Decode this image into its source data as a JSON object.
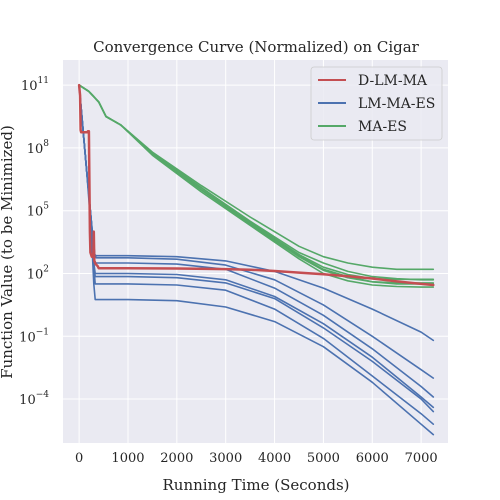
{
  "chart_data": {
    "type": "line",
    "title": "Convergence Curve (Normalized) on Cigar",
    "xlabel": "Running Time (Seconds)",
    "ylabel": "Function Value (to be Minimized)",
    "xlim": [
      -330,
      7550
    ],
    "ylim_log10": [
      -6.1,
      12.2
    ],
    "yscale": "log",
    "grid": true,
    "legend_position": "top-right",
    "xticks": [
      0,
      1000,
      2000,
      3000,
      4000,
      5000,
      6000,
      7000
    ],
    "yticks": [
      {
        "exp": 11,
        "label": "11"
      },
      {
        "exp": 8,
        "label": "8"
      },
      {
        "exp": 5,
        "label": "5"
      },
      {
        "exp": 2,
        "label": "2"
      },
      {
        "exp": -1,
        "label": "−1"
      },
      {
        "exp": -4,
        "label": "−4"
      }
    ],
    "ytick_base": "10",
    "series": [
      {
        "name": "D-LM-MA",
        "color": "#c44e52",
        "runs": [
          {
            "points": [
              [
                0,
                11.0
              ],
              [
                20,
                10.5
              ],
              [
                30,
                8.85
              ],
              [
                40,
                8.75
              ],
              [
                180,
                8.75
              ],
              [
                180,
                8.8
              ],
              [
                200,
                8.8
              ],
              [
                220,
                4.0
              ],
              [
                230,
                3.0
              ],
              [
                260,
                2.8
              ],
              [
                290,
                2.8
              ],
              [
                300,
                4.0
              ],
              [
                310,
                2.6
              ],
              [
                340,
                2.45
              ],
              [
                380,
                2.35
              ],
              [
                400,
                2.25
              ],
              [
                1000,
                2.25
              ],
              [
                2000,
                2.24
              ],
              [
                3000,
                2.21
              ],
              [
                3500,
                2.18
              ],
              [
                4000,
                2.12
              ],
              [
                4500,
                2.04
              ],
              [
                5000,
                1.96
              ],
              [
                5500,
                1.87
              ],
              [
                6000,
                1.76
              ],
              [
                6500,
                1.62
              ],
              [
                7000,
                1.5
              ],
              [
                7250,
                1.45
              ]
            ]
          }
        ]
      },
      {
        "name": "LM-MA-ES",
        "color": "#4c72b0",
        "runs": [
          {
            "points": [
              [
                0,
                11.0
              ],
              [
                150,
                7.0
              ],
              [
                250,
                4.5
              ],
              [
                320,
                2.9
              ],
              [
                350,
                2.85
              ],
              [
                1000,
                2.85
              ],
              [
                2000,
                2.8
              ],
              [
                3000,
                2.6
              ],
              [
                4000,
                2.1
              ],
              [
                5000,
                1.3
              ],
              [
                6000,
                0.3
              ],
              [
                7000,
                -0.8
              ],
              [
                7250,
                -1.2
              ]
            ]
          },
          {
            "points": [
              [
                0,
                11.0
              ],
              [
                150,
                7.0
              ],
              [
                250,
                4.5
              ],
              [
                320,
                2.9
              ],
              [
                350,
                2.75
              ],
              [
                1000,
                2.75
              ],
              [
                2000,
                2.68
              ],
              [
                3000,
                2.4
              ],
              [
                4000,
                1.7
              ],
              [
                5000,
                0.5
              ],
              [
                6000,
                -1.0
              ],
              [
                7000,
                -2.6
              ],
              [
                7250,
                -3.0
              ]
            ]
          },
          {
            "points": [
              [
                0,
                11.0
              ],
              [
                150,
                7.0
              ],
              [
                250,
                4.5
              ],
              [
                300,
                2.7
              ],
              [
                340,
                2.5
              ],
              [
                1000,
                2.5
              ],
              [
                2000,
                2.45
              ],
              [
                3000,
                2.2
              ],
              [
                4000,
                1.3
              ],
              [
                5000,
                0.0
              ],
              [
                6000,
                -1.6
              ],
              [
                7000,
                -3.4
              ],
              [
                7250,
                -3.9
              ]
            ]
          },
          {
            "points": [
              [
                0,
                11.0
              ],
              [
                150,
                7.0
              ],
              [
                250,
                4.5
              ],
              [
                300,
                2.5
              ],
              [
                330,
                2.0
              ],
              [
                1000,
                2.0
              ],
              [
                2000,
                1.95
              ],
              [
                3000,
                1.7
              ],
              [
                4000,
                0.9
              ],
              [
                5000,
                -0.4
              ],
              [
                6000,
                -2.0
              ],
              [
                7000,
                -3.9
              ],
              [
                7250,
                -4.4
              ]
            ]
          },
          {
            "points": [
              [
                0,
                11.0
              ],
              [
                150,
                7.0
              ],
              [
                250,
                4.5
              ],
              [
                300,
                2.4
              ],
              [
                330,
                1.85
              ],
              [
                1000,
                1.85
              ],
              [
                2000,
                1.8
              ],
              [
                3000,
                1.55
              ],
              [
                4000,
                0.8
              ],
              [
                5000,
                -0.6
              ],
              [
                6000,
                -2.2
              ],
              [
                7000,
                -4.0
              ],
              [
                7250,
                -4.6
              ]
            ]
          },
          {
            "points": [
              [
                0,
                11.0
              ],
              [
                150,
                7.0
              ],
              [
                250,
                4.5
              ],
              [
                300,
                2.3
              ],
              [
                330,
                1.5
              ],
              [
                1000,
                1.5
              ],
              [
                2000,
                1.45
              ],
              [
                3000,
                1.2
              ],
              [
                4000,
                0.3
              ],
              [
                5000,
                -1.1
              ],
              [
                6000,
                -2.9
              ],
              [
                7000,
                -4.7
              ],
              [
                7250,
                -5.2
              ]
            ]
          },
          {
            "points": [
              [
                0,
                11.0
              ],
              [
                150,
                7.0
              ],
              [
                250,
                4.0
              ],
              [
                300,
                1.5
              ],
              [
                330,
                0.75
              ],
              [
                1000,
                0.75
              ],
              [
                2000,
                0.7
              ],
              [
                3000,
                0.4
              ],
              [
                4000,
                -0.3
              ],
              [
                5000,
                -1.5
              ],
              [
                6000,
                -3.2
              ],
              [
                7000,
                -5.2
              ],
              [
                7250,
                -5.7
              ]
            ]
          }
        ]
      },
      {
        "name": "MA-ES",
        "color": "#55a868",
        "runs": [
          {
            "points": [
              [
                0,
                11.0
              ],
              [
                200,
                10.7
              ],
              [
                400,
                10.2
              ],
              [
                550,
                9.5
              ],
              [
                700,
                9.3
              ],
              [
                850,
                9.1
              ],
              [
                1500,
                7.8
              ],
              [
                2500,
                6.2
              ],
              [
                3500,
                4.7
              ],
              [
                4500,
                3.3
              ],
              [
                5000,
                2.8
              ],
              [
                5500,
                2.5
              ],
              [
                6000,
                2.3
              ],
              [
                6500,
                2.2
              ],
              [
                7000,
                2.2
              ],
              [
                7250,
                2.2
              ]
            ]
          },
          {
            "points": [
              [
                0,
                11.0
              ],
              [
                200,
                10.7
              ],
              [
                400,
                10.2
              ],
              [
                550,
                9.5
              ],
              [
                700,
                9.3
              ],
              [
                850,
                9.1
              ],
              [
                1500,
                7.75
              ],
              [
                2500,
                6.1
              ],
              [
                3500,
                4.5
              ],
              [
                4500,
                3.0
              ],
              [
                5000,
                2.5
              ],
              [
                5500,
                2.1
              ],
              [
                6000,
                1.85
              ],
              [
                6500,
                1.75
              ],
              [
                7000,
                1.7
              ],
              [
                7250,
                1.7
              ]
            ]
          },
          {
            "points": [
              [
                0,
                11.0
              ],
              [
                200,
                10.7
              ],
              [
                400,
                10.2
              ],
              [
                550,
                9.5
              ],
              [
                700,
                9.3
              ],
              [
                850,
                9.1
              ],
              [
                1500,
                7.75
              ],
              [
                2500,
                6.1
              ],
              [
                3500,
                4.45
              ],
              [
                4500,
                2.9
              ],
              [
                5000,
                2.3
              ],
              [
                5500,
                1.95
              ],
              [
                6000,
                1.75
              ],
              [
                6500,
                1.72
              ],
              [
                7000,
                1.72
              ],
              [
                7250,
                1.72
              ]
            ]
          },
          {
            "points": [
              [
                0,
                11.0
              ],
              [
                200,
                10.7
              ],
              [
                400,
                10.2
              ],
              [
                550,
                9.5
              ],
              [
                700,
                9.3
              ],
              [
                850,
                9.1
              ],
              [
                1500,
                7.7
              ],
              [
                2500,
                6.0
              ],
              [
                3500,
                4.4
              ],
              [
                4500,
                2.85
              ],
              [
                5000,
                2.2
              ],
              [
                5500,
                1.85
              ],
              [
                6000,
                1.6
              ],
              [
                6500,
                1.5
              ],
              [
                7000,
                1.5
              ],
              [
                7250,
                1.5
              ]
            ]
          },
          {
            "points": [
              [
                0,
                11.0
              ],
              [
                200,
                10.7
              ],
              [
                400,
                10.2
              ],
              [
                550,
                9.5
              ],
              [
                700,
                9.3
              ],
              [
                850,
                9.1
              ],
              [
                1500,
                7.7
              ],
              [
                2500,
                6.0
              ],
              [
                3500,
                4.35
              ],
              [
                4500,
                2.8
              ],
              [
                5000,
                2.15
              ],
              [
                5500,
                1.8
              ],
              [
                6000,
                1.6
              ],
              [
                6500,
                1.55
              ],
              [
                7000,
                1.55
              ],
              [
                7250,
                1.55
              ]
            ]
          },
          {
            "points": [
              [
                0,
                11.0
              ],
              [
                200,
                10.7
              ],
              [
                400,
                10.2
              ],
              [
                550,
                9.5
              ],
              [
                700,
                9.3
              ],
              [
                850,
                9.1
              ],
              [
                1500,
                7.65
              ],
              [
                2500,
                5.9
              ],
              [
                3500,
                4.3
              ],
              [
                4500,
                2.7
              ],
              [
                5000,
                2.0
              ],
              [
                5500,
                1.65
              ],
              [
                6000,
                1.45
              ],
              [
                6500,
                1.38
              ],
              [
                7000,
                1.35
              ],
              [
                7250,
                1.35
              ]
            ]
          }
        ]
      }
    ]
  }
}
